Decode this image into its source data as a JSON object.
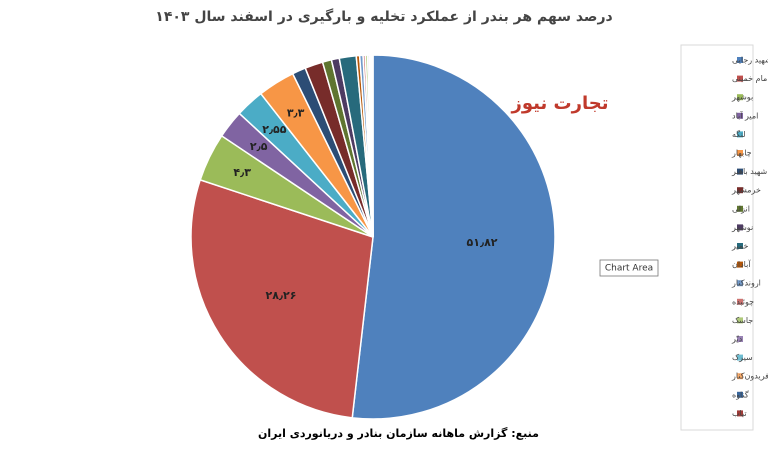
{
  "chart_data": {
    "type": "pie",
    "title": "درصد سهم هر بندر از عملکرد تخلیه و بارگیری در اسفند سال ۱۴۰۳",
    "categories": [
      "شهید رجایی",
      "امام خمینی",
      "بوشهر",
      "امیر آباد",
      "لنگه",
      "چابهار",
      "شهید باهنر",
      "خرمشهر",
      "انزلی",
      "نوشهر",
      "خمیر",
      "آبادان",
      "اروندکنار",
      "چوئبده",
      "جاسک",
      "دیّر",
      "سیرک",
      "فریدون‌کنار",
      "گناوه",
      "تیاب"
    ],
    "values": [
      51.82,
      28.26,
      4.3,
      2.5,
      2.55,
      3.3,
      1.2,
      1.6,
      0.8,
      0.7,
      1.5,
      0.3,
      0.3,
      0.2,
      0.2,
      0.15,
      0.1,
      0.1,
      0.07,
      0.05
    ],
    "value_labels": [
      "۵۱٫۸۲",
      "۲۸٫۲۶",
      "۴٫۳",
      "۲٫۵",
      "۲٫۵۵",
      "۳٫۳",
      null,
      null,
      null,
      null,
      null,
      null,
      null,
      null,
      null,
      null,
      null,
      null,
      null,
      null
    ],
    "colors": [
      "#4f81bd",
      "#c0504d",
      "#9bbb59",
      "#8064a2",
      "#4bacc6",
      "#f79646",
      "#2c4d75",
      "#772c2a",
      "#5f7530",
      "#4d3b62",
      "#276a7c",
      "#b65708",
      "#729aca",
      "#cd7371",
      "#afc97a",
      "#9983b5",
      "#6fbdd1",
      "#f9ab6b",
      "#3a679c",
      "#9f3b38"
    ],
    "source": "منبع: گزارش ماهانه سازمان بنادر و دریانوردی ایران"
  },
  "logo": "تجارت نیوز",
  "tooltip": "Chart Area"
}
